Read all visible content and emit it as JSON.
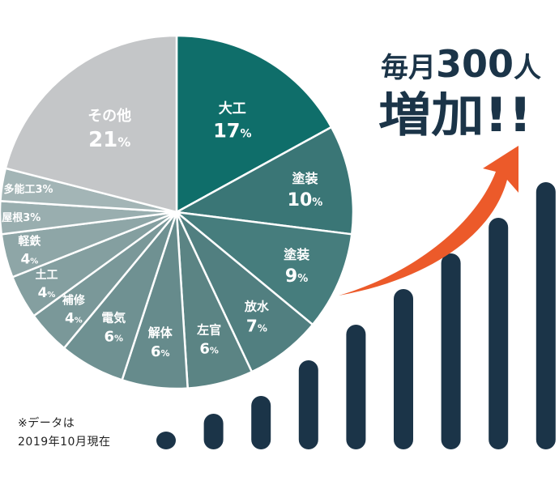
{
  "headline": {
    "line1_prefix": "毎月",
    "line1_number": "300",
    "line1_suffix": "人",
    "line2": "増加!!"
  },
  "footnote": {
    "line1": "※データは",
    "line2": "2019年10月現在"
  },
  "colors": {
    "arrow": "#ec5a2a",
    "bars": "#1b3448",
    "headline": "#1b3448"
  },
  "chart_data": [
    {
      "type": "pie",
      "title": "",
      "unit": "%",
      "slices": [
        {
          "label": "大工",
          "value": 17,
          "color": "#0f6e6a",
          "label_color": "#ffffff"
        },
        {
          "label": "塗装",
          "value": 10,
          "color": "#3a7676",
          "label_color": "#ffffff"
        },
        {
          "label": "塗装",
          "value": 9,
          "color": "#467d7d",
          "label_color": "#ffffff"
        },
        {
          "label": "放水",
          "value": 7,
          "color": "#517f80",
          "label_color": "#ffffff"
        },
        {
          "label": "左官",
          "value": 6,
          "color": "#5b8484",
          "label_color": "#ffffff"
        },
        {
          "label": "解体",
          "value": 6,
          "color": "#668b8c",
          "label_color": "#ffffff"
        },
        {
          "label": "電気",
          "value": 6,
          "color": "#6f9192",
          "label_color": "#ffffff"
        },
        {
          "label": "補修",
          "value": 4,
          "color": "#7a9899",
          "label_color": "#ffffff"
        },
        {
          "label": "土工",
          "value": 4,
          "color": "#849fa0",
          "label_color": "#ffffff"
        },
        {
          "label": "軽鉄",
          "value": 4,
          "color": "#8ea6a7",
          "label_color": "#ffffff"
        },
        {
          "label": "屋根",
          "value": 3,
          "color": "#99aeaf",
          "label_color": "#ffffff"
        },
        {
          "label": "多能工",
          "value": 3,
          "color": "#a3b5b6",
          "label_color": "#ffffff"
        },
        {
          "label": "その他",
          "value": 21,
          "color": "#c4c6c8",
          "label_color": "#ffffff"
        }
      ]
    },
    {
      "type": "bar",
      "title": "",
      "series": [
        {
          "values": [
            1,
            2,
            3,
            5,
            7,
            9,
            11,
            13,
            15
          ]
        }
      ],
      "ylim": [
        0,
        15
      ],
      "color": "#1b3448"
    }
  ]
}
